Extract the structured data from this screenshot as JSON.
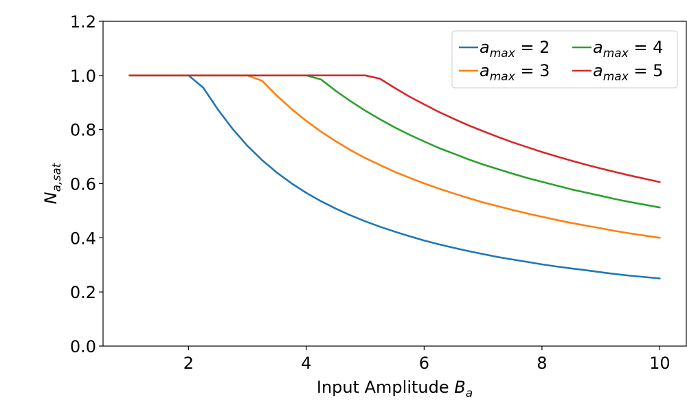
{
  "chart_data": {
    "type": "line",
    "title": "",
    "xlabel": {
      "text": "Input Amplitude ",
      "var": "B",
      "sub": "a"
    },
    "ylabel": {
      "var": "N",
      "sub": "a,sat"
    },
    "xlim": [
      0.55,
      10.45
    ],
    "ylim": [
      0.0,
      1.2
    ],
    "xticks": [
      2,
      4,
      6,
      8,
      10
    ],
    "xtick_labels": [
      "2",
      "4",
      "6",
      "8",
      "10"
    ],
    "yticks": [
      0.0,
      0.2,
      0.4,
      0.6,
      0.8,
      1.0,
      1.2
    ],
    "ytick_labels": [
      "0.0",
      "0.2",
      "0.4",
      "0.6",
      "0.8",
      "1.0",
      "1.2"
    ],
    "grid": false,
    "legend": {
      "placement": "top-right",
      "columns": 2
    },
    "x": [
      1,
      1.25,
      1.5,
      1.75,
      2,
      2.25,
      2.5,
      2.75,
      3,
      3.25,
      3.5,
      3.75,
      4,
      4.25,
      4.5,
      4.75,
      5,
      5.25,
      5.5,
      5.75,
      6,
      6.25,
      6.5,
      6.75,
      7,
      7.25,
      7.5,
      7.75,
      8,
      8.25,
      8.5,
      8.75,
      9,
      9.25,
      9.5,
      9.75,
      10
    ],
    "series": [
      {
        "name": "a_max = 2",
        "legend": {
          "var": "a",
          "sub": "max",
          "rest": " = 2"
        },
        "color": "#1f77b4",
        "values": [
          1.0,
          1.0,
          1.0,
          1.0,
          1.0,
          0.955,
          0.874,
          0.802,
          0.74,
          0.687,
          0.641,
          0.601,
          0.566,
          0.535,
          0.508,
          0.483,
          0.461,
          0.441,
          0.423,
          0.406,
          0.39,
          0.376,
          0.363,
          0.351,
          0.34,
          0.329,
          0.32,
          0.311,
          0.302,
          0.294,
          0.287,
          0.28,
          0.273,
          0.266,
          0.26,
          0.255,
          0.25
        ]
      },
      {
        "name": "a_max = 3",
        "legend": {
          "var": "a",
          "sub": "max",
          "rest": " = 3"
        },
        "color": "#ff7f0e",
        "values": [
          1.0,
          1.0,
          1.0,
          1.0,
          1.0,
          1.0,
          1.0,
          1.0,
          1.0,
          0.98,
          0.925,
          0.876,
          0.832,
          0.792,
          0.757,
          0.724,
          0.695,
          0.669,
          0.644,
          0.622,
          0.601,
          0.582,
          0.564,
          0.547,
          0.531,
          0.517,
          0.503,
          0.49,
          0.478,
          0.466,
          0.455,
          0.445,
          0.435,
          0.425,
          0.416,
          0.408,
          0.4
        ]
      },
      {
        "name": "a_max = 4",
        "legend": {
          "var": "a",
          "sub": "max",
          "rest": " = 4"
        },
        "color": "#2ca02c",
        "values": [
          1.0,
          1.0,
          1.0,
          1.0,
          1.0,
          1.0,
          1.0,
          1.0,
          1.0,
          1.0,
          1.0,
          1.0,
          1.0,
          0.985,
          0.943,
          0.905,
          0.87,
          0.838,
          0.808,
          0.781,
          0.756,
          0.732,
          0.711,
          0.69,
          0.671,
          0.654,
          0.637,
          0.621,
          0.607,
          0.593,
          0.579,
          0.567,
          0.555,
          0.543,
          0.532,
          0.522,
          0.512
        ]
      },
      {
        "name": "a_max = 5",
        "legend": {
          "var": "a",
          "sub": "max",
          "rest": " = 5"
        },
        "color": "#d62728",
        "values": [
          1.0,
          1.0,
          1.0,
          1.0,
          1.0,
          1.0,
          1.0,
          1.0,
          1.0,
          1.0,
          1.0,
          1.0,
          1.0,
          1.0,
          1.0,
          1.0,
          1.0,
          0.988,
          0.954,
          0.922,
          0.893,
          0.865,
          0.84,
          0.816,
          0.794,
          0.773,
          0.753,
          0.735,
          0.717,
          0.701,
          0.685,
          0.67,
          0.656,
          0.643,
          0.63,
          0.618,
          0.606
        ]
      }
    ]
  }
}
